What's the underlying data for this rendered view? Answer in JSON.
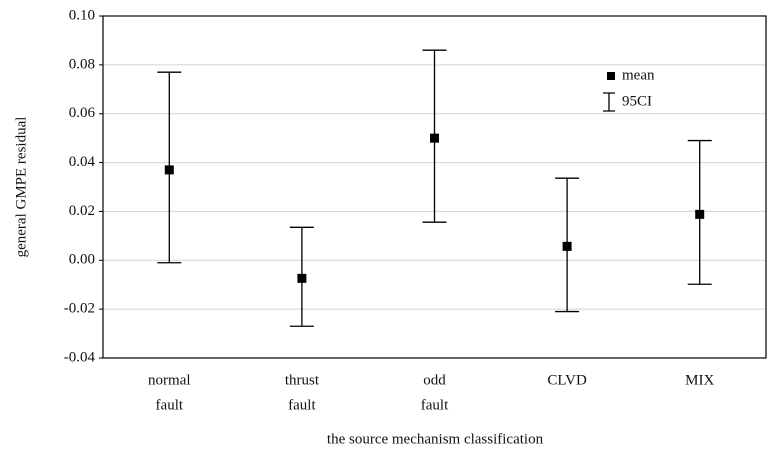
{
  "chart_data": {
    "type": "errorbar",
    "x_label": "the source mechanism classification",
    "y_label": "general GMPE residual",
    "categories": [
      [
        "normal",
        "fault"
      ],
      [
        "thrust",
        "fault"
      ],
      [
        "odd",
        "fault"
      ],
      [
        "CLVD"
      ],
      [
        "MIX"
      ]
    ],
    "values": [
      0.037,
      -0.0074,
      0.05,
      0.0057,
      0.0188
    ],
    "lower": [
      -0.001,
      -0.027,
      0.0156,
      -0.021,
      -0.0098
    ],
    "upper": [
      0.077,
      0.0135,
      0.086,
      0.0336,
      0.049
    ],
    "legend_labels": [
      "mean",
      "95CI"
    ],
    "color": "#000000",
    "ylim": [
      -0.04,
      0.1
    ],
    "yticks": [
      {
        "value": -0.04,
        "label": "-0.04"
      },
      {
        "value": -0.02,
        "label": "-0.02"
      },
      {
        "value": 0,
        "label": "0.00"
      },
      {
        "value": 0.02,
        "label": "0.02"
      },
      {
        "value": 0.04,
        "label": "0.04"
      },
      {
        "value": 0.06,
        "label": "0.06"
      },
      {
        "value": 0.08,
        "label": "0.08"
      },
      {
        "value": 0.1,
        "label": "0.10"
      }
    ],
    "grid": true
  }
}
